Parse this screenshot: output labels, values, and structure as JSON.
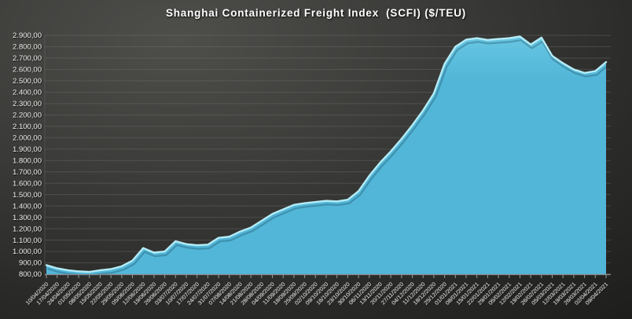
{
  "title": "Shanghai Containerized Freight Index  (SCFI) ($/TEU)",
  "chart_data": {
    "type": "area",
    "title": "Shanghai Containerized Freight Index  (SCFI) ($/TEU)",
    "xlabel": "",
    "ylabel": "",
    "legend": "none",
    "grid": "horizontal",
    "ylim": [
      800,
      2900
    ],
    "ytick_step": 100,
    "ytick_labels": [
      "2.900,00",
      "2.800,00",
      "2.700,00",
      "2.600,00",
      "2.500,00",
      "2.400,00",
      "2.300,00",
      "2.200,00",
      "2.100,00",
      "2.000,00",
      "1.900,00",
      "1.800,00",
      "1.700,00",
      "1.600,00",
      "1.500,00",
      "1.400,00",
      "1.300,00",
      "1.200,00",
      "1.100,00",
      "1.000,00",
      "900,00",
      "800,00"
    ],
    "x": [
      "10/04/2020",
      "17/04/2020",
      "24/04/2020",
      "01/05/2020",
      "08/05/2020",
      "15/05/2020",
      "22/05/2020",
      "29/05/2020",
      "05/06/2020",
      "12/06/2020",
      "19/06/2020",
      "26/06/2020",
      "03/07/2020",
      "10/07/2020",
      "17/07/2020",
      "24/07/2020",
      "31/07/2020",
      "07/08/2020",
      "14/08/2020",
      "21/08/2020",
      "28/08/2020",
      "04/09/2020",
      "11/09/2020",
      "18/09/2020",
      "25/09/2020",
      "02/10/2020",
      "09/10/2020",
      "16/10/2020",
      "23/10/2020",
      "30/10/2020",
      "06/11/2020",
      "13/11/2020",
      "20/11/2020",
      "27/11/2020",
      "04/12/2020",
      "11/12/2020",
      "18/12/2020",
      "25/12/2020",
      "01/01/2021",
      "08/01/2021",
      "15/01/2021",
      "22/01/2021",
      "29/01/2021",
      "05/02/2021",
      "12/02/2021",
      "19/02/2021",
      "26/02/2021",
      "05/03/2021",
      "12/03/2021",
      "19/03/2021",
      "26/03/2021",
      "02/04/2021",
      "09/04/2021"
    ],
    "series": [
      {
        "name": "SCFI",
        "values": [
          880,
          852,
          835,
          825,
          820,
          835,
          845,
          870,
          920,
          1030,
          990,
          1000,
          1090,
          1065,
          1055,
          1060,
          1120,
          1130,
          1175,
          1210,
          1270,
          1330,
          1370,
          1410,
          1425,
          1435,
          1445,
          1440,
          1455,
          1530,
          1665,
          1780,
          1880,
          1990,
          2110,
          2240,
          2390,
          2650,
          2800,
          2862,
          2875,
          2860,
          2868,
          2875,
          2890,
          2820,
          2880,
          2720,
          2655,
          2600,
          2570,
          2585,
          2665
        ]
      }
    ],
    "colors": {
      "area_fill": "#52b6d8",
      "area_fill_light": "#67c6e2",
      "edge_highlight": "#b5ecf6",
      "edge_shadow": "#1e4c60",
      "gridline": "#757575",
      "axis_line": "#8a8a8a",
      "tick": "#9a9a9a",
      "label": "#e3e3e3",
      "title": "#ffffff"
    }
  }
}
